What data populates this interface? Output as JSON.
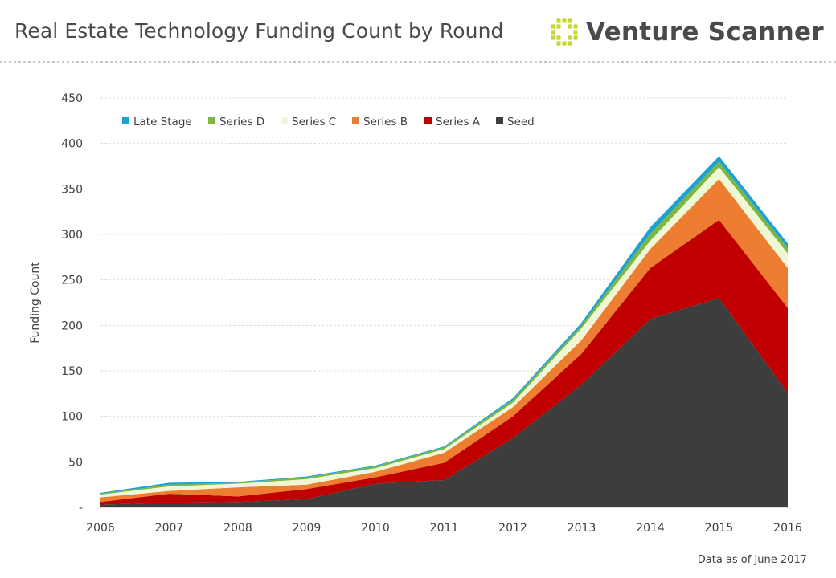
{
  "header": {
    "title": "Real Estate Technology Funding Count by Round",
    "brand": "Venture Scanner"
  },
  "note": "Data as of June 2017",
  "colors": {
    "logo": "#c6d82f",
    "gridline": "#dcdcdc",
    "axis": "#bfbfbf"
  },
  "chart_data": {
    "type": "area",
    "stacked": true,
    "title": "Real Estate Technology Funding Count by Round",
    "xlabel": "",
    "ylabel": "Funding Count",
    "x": [
      2006,
      2007,
      2008,
      2009,
      2010,
      2011,
      2012,
      2013,
      2014,
      2015,
      2016
    ],
    "ylim": [
      0,
      450
    ],
    "yticks": [
      "-",
      "50",
      "100",
      "150",
      "200",
      "250",
      "300",
      "350",
      "400",
      "450"
    ],
    "ytick_values": [
      0,
      50,
      100,
      150,
      200,
      250,
      300,
      350,
      400,
      450
    ],
    "grid": true,
    "legend_position": "top-left",
    "series": [
      {
        "name": "Seed",
        "color": "#3d3d3d",
        "values": [
          3,
          5,
          6,
          9,
          26,
          30,
          76,
          135,
          207,
          230,
          126
        ]
      },
      {
        "name": "Series A",
        "color": "#c00000",
        "values": [
          3,
          10,
          6,
          11,
          7,
          19,
          24,
          34,
          56,
          86,
          93
        ]
      },
      {
        "name": "Series B",
        "color": "#ed7d31",
        "values": [
          5,
          3,
          10,
          5,
          6,
          11,
          10,
          15,
          21,
          45,
          44
        ]
      },
      {
        "name": "Series C",
        "color": "#f0f7d4",
        "values": [
          3,
          5,
          4,
          6,
          4,
          4,
          5,
          13,
          9,
          13,
          16
        ]
      },
      {
        "name": "Series D",
        "color": "#7db643",
        "values": [
          1,
          2,
          1,
          2,
          2,
          2,
          3,
          3,
          8,
          6,
          6
        ]
      },
      {
        "name": "Late Stage",
        "color": "#1ba1d4",
        "values": [
          1,
          2,
          1,
          1,
          1,
          1,
          2,
          3,
          7,
          6,
          5
        ]
      }
    ],
    "legend_order": [
      "Late Stage",
      "Series D",
      "Series C",
      "Series B",
      "Series A",
      "Seed"
    ]
  }
}
